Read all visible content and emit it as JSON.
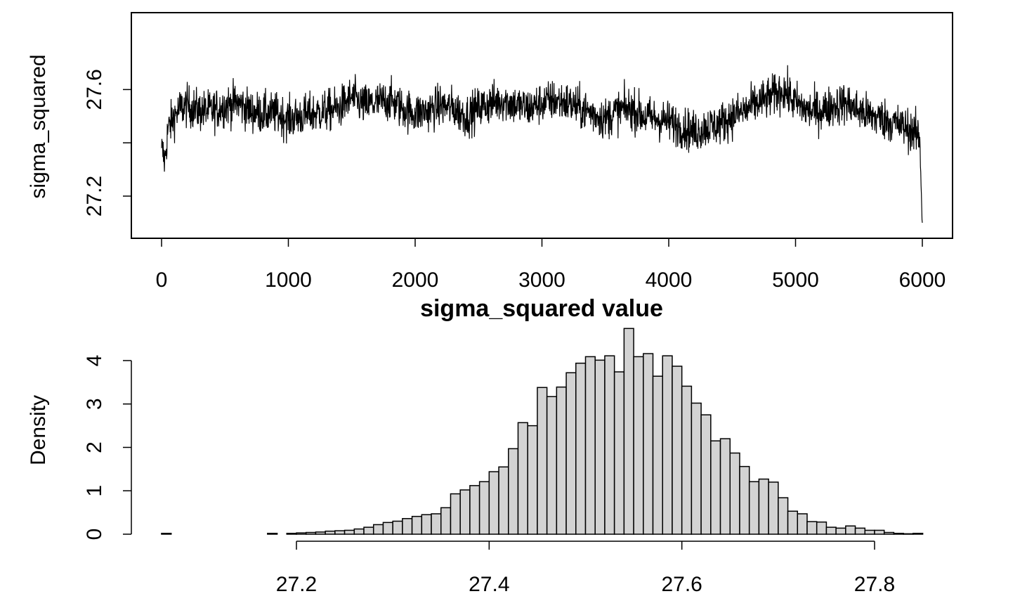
{
  "chart_data": [
    {
      "type": "line",
      "title": "",
      "xlabel": "",
      "ylabel": "sigma_squared",
      "xlim": [
        -240,
        6240
      ],
      "ylim": [
        27.04,
        27.86
      ],
      "x_ticks": [
        "0",
        "1000",
        "2000",
        "3000",
        "4000",
        "5000",
        "6000"
      ],
      "y_ticks": [
        "27.2",
        "27.4",
        "27.6"
      ],
      "y_tick_values": [
        27.2,
        27.4,
        27.6
      ],
      "y_labeled_ticks": [
        "27.2",
        "27.6"
      ],
      "box": true,
      "series": [
        {
          "x": [
            0,
            25,
            50,
            100,
            150,
            200,
            300,
            400,
            500,
            600,
            700,
            800,
            900,
            1000,
            1100,
            1200,
            1300,
            1400,
            1500,
            1600,
            1700,
            1800,
            1900,
            2000,
            2100,
            2200,
            2300,
            2400,
            2500,
            2600,
            2700,
            2800,
            2900,
            3000,
            3100,
            3200,
            3300,
            3400,
            3500,
            3600,
            3700,
            3800,
            3900,
            4000,
            4100,
            4200,
            4300,
            4400,
            4500,
            4600,
            4700,
            4800,
            4900,
            5000,
            5100,
            5200,
            5300,
            5400,
            5500,
            5600,
            5700,
            5800,
            5900,
            5980,
            6000
          ],
          "values": [
            27.38,
            27.33,
            27.45,
            27.5,
            27.53,
            27.54,
            27.52,
            27.52,
            27.54,
            27.55,
            27.52,
            27.51,
            27.51,
            27.49,
            27.5,
            27.51,
            27.52,
            27.53,
            27.57,
            27.54,
            27.55,
            27.56,
            27.53,
            27.51,
            27.52,
            27.54,
            27.53,
            27.5,
            27.53,
            27.55,
            27.56,
            27.54,
            27.53,
            27.55,
            27.56,
            27.55,
            27.53,
            27.51,
            27.49,
            27.52,
            27.53,
            27.5,
            27.49,
            27.48,
            27.46,
            27.44,
            27.46,
            27.47,
            27.5,
            27.52,
            27.55,
            27.57,
            27.6,
            27.55,
            27.52,
            27.52,
            27.54,
            27.55,
            27.52,
            27.5,
            27.49,
            27.47,
            27.45,
            27.42,
            27.1
          ]
        }
      ]
    },
    {
      "type": "bar",
      "title": "sigma_squared value",
      "xlabel": "",
      "ylabel": "Density",
      "xlim": [
        27.04,
        27.86
      ],
      "ylim": [
        -0.1,
        4.8
      ],
      "x_ticks": [
        "27.2",
        "27.4",
        "27.6",
        "27.8"
      ],
      "x_tick_values": [
        27.2,
        27.4,
        27.6,
        27.8
      ],
      "y_ticks": [
        "0",
        "1",
        "2",
        "3",
        "4"
      ],
      "bin_start": 27.06,
      "bin_width": 0.01,
      "bar_fill": "#d3d3d3",
      "values": [
        0.02,
        0,
        0,
        0,
        0,
        0,
        0,
        0,
        0,
        0,
        0,
        0.02,
        0,
        0.02,
        0.03,
        0.04,
        0.05,
        0.07,
        0.08,
        0.09,
        0.12,
        0.16,
        0.22,
        0.27,
        0.3,
        0.36,
        0.41,
        0.45,
        0.47,
        0.61,
        0.93,
        1.02,
        1.12,
        1.21,
        1.44,
        1.55,
        1.97,
        2.57,
        2.5,
        3.38,
        3.17,
        3.39,
        3.72,
        3.94,
        4.09,
        4.01,
        4.11,
        3.74,
        4.74,
        4.09,
        4.16,
        3.64,
        4.11,
        3.87,
        3.41,
        3.02,
        2.75,
        2.15,
        2.2,
        1.87,
        1.56,
        1.21,
        1.27,
        1.2,
        0.84,
        0.53,
        0.47,
        0.29,
        0.28,
        0.16,
        0.14,
        0.19,
        0.14,
        0.09,
        0.09,
        0.04,
        0.02,
        0.01,
        0.02
      ]
    }
  ]
}
